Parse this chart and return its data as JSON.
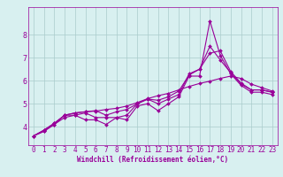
{
  "xlabel": "Windchill (Refroidissement éolien,°C)",
  "x_values": [
    0,
    1,
    2,
    3,
    4,
    5,
    6,
    7,
    8,
    9,
    10,
    11,
    12,
    13,
    14,
    15,
    16,
    17,
    18,
    19,
    20,
    21,
    22,
    23
  ],
  "line1": [
    3.6,
    3.8,
    4.1,
    4.4,
    4.5,
    4.3,
    4.3,
    4.1,
    4.4,
    4.3,
    4.9,
    5.0,
    4.7,
    5.0,
    5.3,
    6.2,
    6.2,
    8.6,
    7.1,
    6.3,
    5.8,
    5.5,
    5.5,
    5.4
  ],
  "line2": [
    3.6,
    3.8,
    4.1,
    4.5,
    4.5,
    4.6,
    4.4,
    4.4,
    4.4,
    4.5,
    5.0,
    5.2,
    5.0,
    5.2,
    5.4,
    6.3,
    6.5,
    7.2,
    7.3,
    6.4,
    5.9,
    5.6,
    5.6,
    5.5
  ],
  "line3": [
    3.6,
    3.85,
    4.15,
    4.5,
    4.6,
    4.65,
    4.7,
    4.5,
    4.65,
    4.75,
    5.0,
    5.2,
    5.15,
    5.3,
    5.55,
    6.25,
    6.5,
    7.5,
    6.9,
    6.35,
    5.85,
    5.6,
    5.6,
    5.5
  ],
  "line4": [
    3.6,
    3.85,
    4.15,
    4.5,
    4.6,
    4.65,
    4.68,
    4.75,
    4.8,
    4.9,
    5.05,
    5.22,
    5.35,
    5.45,
    5.6,
    5.75,
    5.88,
    5.98,
    6.1,
    6.2,
    6.1,
    5.85,
    5.7,
    5.55
  ],
  "line_color": "#990099",
  "bg_color": "#d8f0f0",
  "grid_color": "#aacccc",
  "xlim": [
    -0.5,
    23.5
  ],
  "ylim": [
    3.2,
    9.2
  ],
  "yticks": [
    4,
    5,
    6,
    7,
    8
  ],
  "xticks": [
    0,
    1,
    2,
    3,
    4,
    5,
    6,
    7,
    8,
    9,
    10,
    11,
    12,
    13,
    14,
    15,
    16,
    17,
    18,
    19,
    20,
    21,
    22,
    23
  ],
  "xlabel_fontsize": 5.5,
  "tick_fontsize": 5.5,
  "lw": 0.8,
  "ms": 2.0
}
